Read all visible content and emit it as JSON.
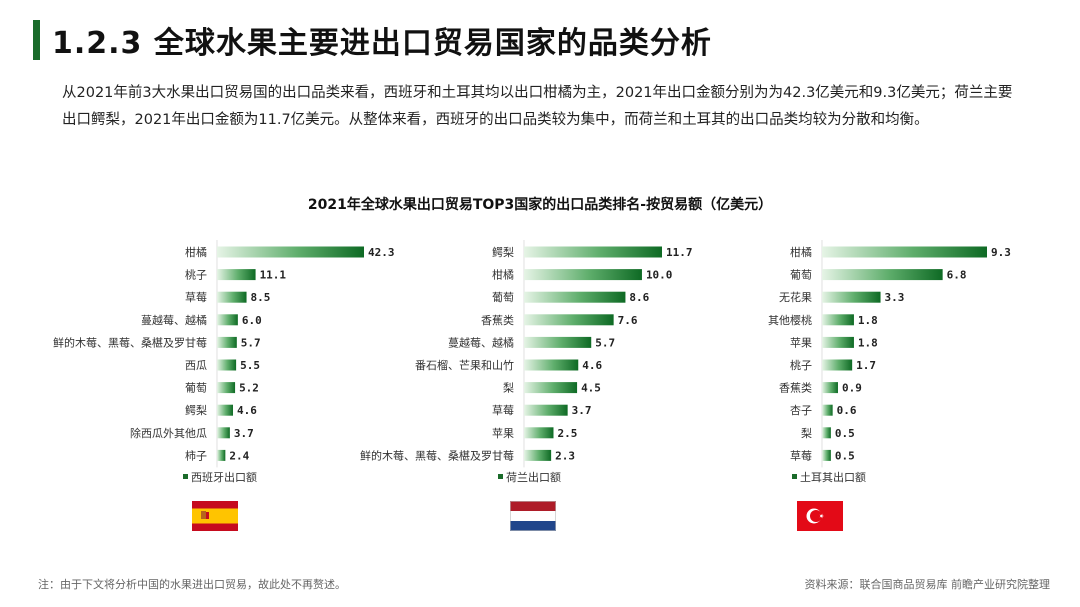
{
  "header": {
    "title": "1.2.3 全球水果主要进出口贸易国家的品类分析",
    "paragraph": "从2021年前3大水果出口贸易国的出口品类来看，西班牙和土耳其均以出口柑橘为主，2021年出口金额分别为为42.3亿美元和9.3亿美元；荷兰主要出口鳄梨，2021年出口金额为11.7亿美元。从整体来看，西班牙的出口品类较为集中，而荷兰和土耳其的出口品类均较为分散和均衡。"
  },
  "footer": {
    "note": "注：由于下文将分析中国的水果进出口贸易，故此处不再赘述。",
    "source": "资料来源：联合国商品贸易库 前瞻产业研究院整理"
  },
  "colors": {
    "accent": "#1a6b2a",
    "bar_dark": "#0e6a24",
    "bar_light": "#e6f4e6"
  },
  "chart_data": [
    {
      "type": "bar",
      "orientation": "horizontal",
      "title": "2021年全球水果出口贸易TOP3国家的出口品类排名-按贸易额（亿美元）",
      "series": [
        {
          "name": "西班牙出口额",
          "values": [
            42.3,
            11.1,
            8.5,
            6.0,
            5.7,
            5.5,
            5.2,
            4.6,
            3.7,
            2.4
          ]
        }
      ],
      "categories": [
        "柑橘",
        "桃子",
        "草莓",
        "蔓越莓、越橘",
        "鲜的木莓、黑莓、桑椹及罗甘莓",
        "西瓜",
        "葡萄",
        "鳄梨",
        "除西瓜外其他瓜",
        "柿子"
      ],
      "labels": [
        "42.3",
        "11.1",
        "8.5",
        "6.0",
        "5.7",
        "5.5",
        "5.2",
        "4.6",
        "3.7",
        "2.4"
      ],
      "country": "西班牙"
    },
    {
      "type": "bar",
      "orientation": "horizontal",
      "series": [
        {
          "name": "荷兰出口额",
          "values": [
            11.7,
            10.0,
            8.6,
            7.6,
            5.7,
            4.6,
            4.5,
            3.7,
            2.5,
            2.3
          ]
        }
      ],
      "categories": [
        "鳄梨",
        "柑橘",
        "葡萄",
        "香蕉类",
        "蔓越莓、越橘",
        "番石榴、芒果和山竹",
        "梨",
        "草莓",
        "苹果",
        "鲜的木莓、黑莓、桑椹及罗甘莓"
      ],
      "labels": [
        "11.7",
        "10.0",
        "8.6",
        "7.6",
        "5.7",
        "4.6",
        "4.5",
        "3.7",
        "2.5",
        "2.3"
      ],
      "country": "荷兰"
    },
    {
      "type": "bar",
      "orientation": "horizontal",
      "series": [
        {
          "name": "土耳其出口额",
          "values": [
            9.3,
            6.8,
            3.3,
            1.8,
            1.8,
            1.7,
            0.9,
            0.6,
            0.5,
            0.5
          ]
        }
      ],
      "categories": [
        "柑橘",
        "葡萄",
        "无花果",
        "其他樱桃",
        "苹果",
        "桃子",
        "香蕉类",
        "杏子",
        "梨",
        "草莓"
      ],
      "labels": [
        "9.3",
        "6.8",
        "3.3",
        "1.8",
        "1.8",
        "1.7",
        "0.9",
        "0.6",
        "0.5",
        "0.5"
      ],
      "country": "土耳其"
    }
  ]
}
